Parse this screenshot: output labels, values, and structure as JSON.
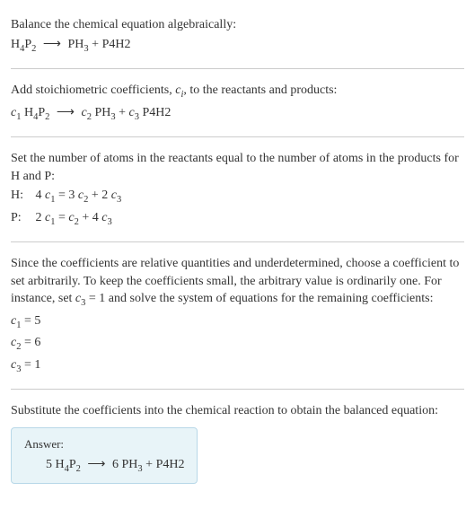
{
  "section1": {
    "line1_a": "Balance the chemical equation algebraically:",
    "eq_lhs": "H",
    "eq_lhs_sub1": "4",
    "eq_lhs2": "P",
    "eq_lhs_sub2": "2",
    "arrow": "⟶",
    "eq_rhs1": "PH",
    "eq_rhs1_sub": "3",
    "plus": " + ",
    "eq_rhs2": "P4H2"
  },
  "section2": {
    "line1_a": "Add stoichiometric coefficients, ",
    "line1_ci": "c",
    "line1_ci_sub": "i",
    "line1_b": ", to the reactants and products:",
    "c1": "c",
    "c1_sub": "1",
    "sp1": " H",
    "sp1_sub1": "4",
    "sp1b": "P",
    "sp1_sub2": "2",
    "arrow": "⟶",
    "c2": "c",
    "c2_sub": "2",
    "sp2": " PH",
    "sp2_sub": "3",
    "plus": " + ",
    "c3": "c",
    "c3_sub": "3",
    "sp3": " P4H2"
  },
  "section3": {
    "line1": "Set the number of atoms in the reactants equal to the number of atoms in the products for H and P:",
    "h_label": "H: ",
    "h_eq_a": "4 ",
    "h_eq_c1": "c",
    "h_eq_c1s": "1",
    "h_eq_b": " = 3 ",
    "h_eq_c2": "c",
    "h_eq_c2s": "2",
    "h_eq_c": " + 2 ",
    "h_eq_c3": "c",
    "h_eq_c3s": "3",
    "p_label": "P: ",
    "p_eq_a": "2 ",
    "p_eq_c1": "c",
    "p_eq_c1s": "1",
    "p_eq_b": " = ",
    "p_eq_c2": "c",
    "p_eq_c2s": "2",
    "p_eq_c": " + 4 ",
    "p_eq_c3": "c",
    "p_eq_c3s": "3"
  },
  "section4": {
    "line1_a": "Since the coefficients are relative quantities and underdetermined, choose a coefficient to set arbitrarily. To keep the coefficients small, the arbitrary value is ordinarily one. For instance, set ",
    "line1_c3": "c",
    "line1_c3s": "3",
    "line1_b": " = 1 and solve the system of equations for the remaining coefficients:",
    "r1_c": "c",
    "r1_s": "1",
    "r1_v": " = 5",
    "r2_c": "c",
    "r2_s": "2",
    "r2_v": " = 6",
    "r3_c": "c",
    "r3_s": "3",
    "r3_v": " = 1"
  },
  "section5": {
    "line1": "Substitute the coefficients into the chemical reaction to obtain the balanced equation:",
    "answer_label": "Answer:",
    "coef1": "5 H",
    "sub1a": "4",
    "mid1": "P",
    "sub1b": "2",
    "arrow": "⟶",
    "coef2": " 6 PH",
    "sub2": "3",
    "plus": " + ",
    "rhs2": "P4H2"
  },
  "colors": {
    "text": "#333333",
    "divider": "#cccccc",
    "answer_bg": "#e8f4f8",
    "answer_border": "#b8d8e8"
  }
}
